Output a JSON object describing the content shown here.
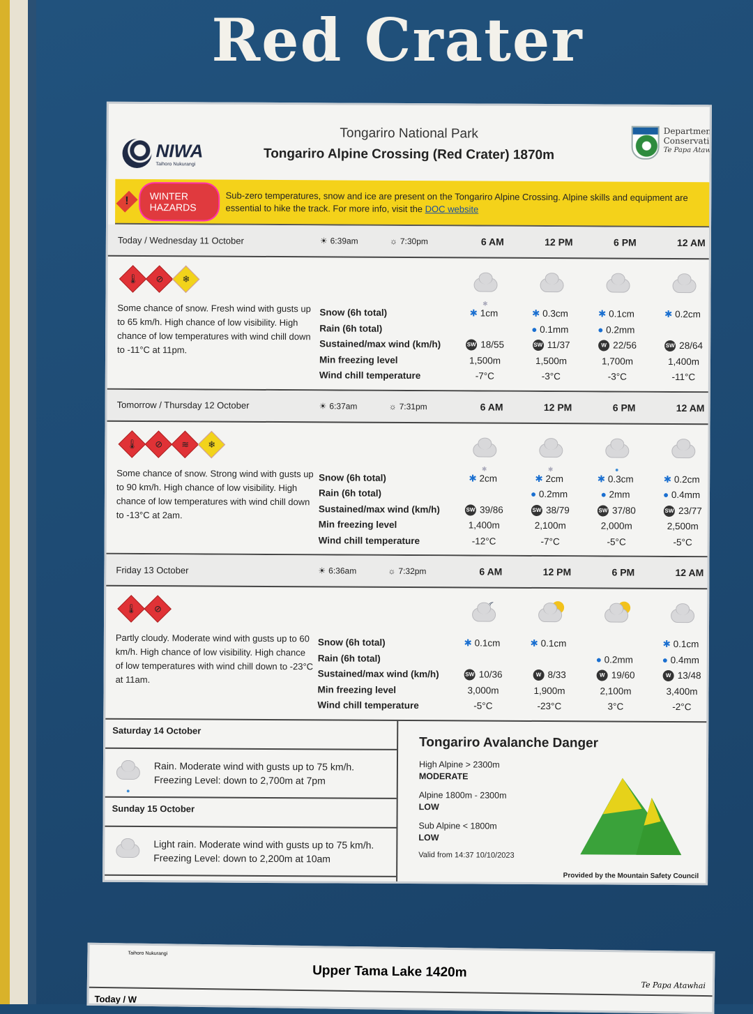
{
  "sign_title": "Red Crater",
  "header": {
    "org": "NIWA",
    "org_sub": "Taihoro Nukurangi",
    "park": "Tongariro National Park",
    "location": "Tongariro Alpine Crossing (Red Crater) 1870m",
    "doc_lines": [
      "Department of",
      "Conservation",
      "Te Papa Atawhai"
    ]
  },
  "banner": {
    "badge": "WINTER HAZARDS",
    "text": "Sub-zero temperatures, snow and ice are present on the Tongariro Alpine Crossing. Alpine skills and equipment are essential to hike the track. For more info, visit the ",
    "link": "DOC website",
    "color": "#f4d21a"
  },
  "row_labels": [
    "Snow (6h total)",
    "Rain (6h total)",
    "Sustained/max wind (km/h)",
    "Min freezing level",
    "Wind chill temperature"
  ],
  "times": [
    "6 AM",
    "12 PM",
    "6 PM",
    "12 AM"
  ],
  "days": [
    {
      "name": "Today / Wednesday 11 October",
      "sunrise": "6:39am",
      "sunset": "7:30pm",
      "hazards": [
        "red:temperature-icon",
        "red:low-visibility-icon",
        "yellow:snow-icon"
      ],
      "description": "Some chance of snow. Fresh wind with gusts up to 65 km/h. High chance of low visibility. High chance of low temperatures with wind chill down to -11°C at 11pm.",
      "cols": [
        {
          "icon": "cloud-snow",
          "snow": "1cm",
          "rain": "",
          "wind_dir": "SW",
          "wind": "18/55",
          "freezing": "1,500m",
          "chill": "-7°C"
        },
        {
          "icon": "cloud",
          "snow": "0.3cm",
          "rain": "0.1mm",
          "wind_dir": "SW",
          "wind": "11/37",
          "freezing": "1,500m",
          "chill": "-3°C"
        },
        {
          "icon": "cloud",
          "snow": "0.1cm",
          "rain": "0.2mm",
          "wind_dir": "W",
          "wind": "22/56",
          "freezing": "1,700m",
          "chill": "-3°C"
        },
        {
          "icon": "cloud",
          "snow": "0.2cm",
          "rain": "",
          "wind_dir": "SW",
          "wind": "28/64",
          "freezing": "1,400m",
          "chill": "-11°C"
        }
      ]
    },
    {
      "name": "Tomorrow / Thursday 12 October",
      "sunrise": "6:37am",
      "sunset": "7:31pm",
      "hazards": [
        "red:temperature-icon",
        "red:low-visibility-icon",
        "red:wind-icon",
        "yellow:snow-icon"
      ],
      "description": "Some chance of snow. Strong wind with gusts up to 90 km/h. High chance of low visibility. High chance of low temperatures with wind chill down to -13°C at 2am.",
      "cols": [
        {
          "icon": "cloud-snow",
          "snow": "2cm",
          "rain": "",
          "wind_dir": "SW",
          "wind": "39/86",
          "freezing": "1,400m",
          "chill": "-12°C"
        },
        {
          "icon": "cloud-snow",
          "snow": "2cm",
          "rain": "0.2mm",
          "wind_dir": "SW",
          "wind": "38/79",
          "freezing": "2,100m",
          "chill": "-7°C"
        },
        {
          "icon": "cloud-rain",
          "snow": "0.3cm",
          "rain": "2mm",
          "wind_dir": "SW",
          "wind": "37/80",
          "freezing": "2,000m",
          "chill": "-5°C"
        },
        {
          "icon": "cloud",
          "snow": "0.2cm",
          "rain": "0.4mm",
          "wind_dir": "SW",
          "wind": "23/77",
          "freezing": "2,500m",
          "chill": "-5°C"
        }
      ]
    },
    {
      "name": "Friday 13 October",
      "sunrise": "6:36am",
      "sunset": "7:32pm",
      "hazards": [
        "red:temperature-icon",
        "red:low-visibility-icon"
      ],
      "description": "Partly cloudy. Moderate wind with gusts up to 60 km/h. High chance of low visibility. High chance of low temperatures with wind chill down to -23°C at 11am.",
      "cols": [
        {
          "icon": "moon-cloud",
          "snow": "0.1cm",
          "rain": "",
          "wind_dir": "SW",
          "wind": "10/36",
          "freezing": "3,000m",
          "chill": "-5°C"
        },
        {
          "icon": "sun-cloud",
          "snow": "0.1cm",
          "rain": "",
          "wind_dir": "W",
          "wind": "8/33",
          "freezing": "1,900m",
          "chill": "-23°C"
        },
        {
          "icon": "sun-cloud",
          "snow": "",
          "rain": "0.2mm",
          "wind_dir": "W",
          "wind": "19/60",
          "freezing": "2,100m",
          "chill": "3°C"
        },
        {
          "icon": "cloud",
          "snow": "0.1cm",
          "rain": "0.4mm",
          "wind_dir": "W",
          "wind": "13/48",
          "freezing": "3,400m",
          "chill": "-2°C"
        }
      ]
    }
  ],
  "outlook": [
    {
      "name": "Saturday 14 October",
      "icon": "cloud-rain",
      "text": "Rain. Moderate wind with gusts up to 75 km/h. Freezing Level: down to 2,700m at 7pm"
    },
    {
      "name": "Sunday 15 October",
      "icon": "cloud",
      "text": "Light rain. Moderate wind with gusts up to 75 km/h. Freezing Level: down to 2,200m at 10am"
    }
  ],
  "avalanche": {
    "title": "Tongariro Avalanche Danger",
    "zones": [
      {
        "zone": "High Alpine > 2300m",
        "level": "MODERATE",
        "color": "#e6d21a"
      },
      {
        "zone": "Alpine 1800m - 2300m",
        "level": "LOW",
        "color": "#3aa23a"
      },
      {
        "zone": "Sub Alpine < 1800m",
        "level": "LOW",
        "color": "#3aa23a"
      }
    ],
    "valid": "Valid from 14:37 10/10/2023",
    "provider": "Provided by the Mountain Safety Council"
  },
  "second_sign": {
    "org_sub": "Taihoro Nukurangi",
    "location": "Upper Tama Lake 1420m",
    "doc": "Te Papa Atawhai",
    "today": "Today / W"
  }
}
